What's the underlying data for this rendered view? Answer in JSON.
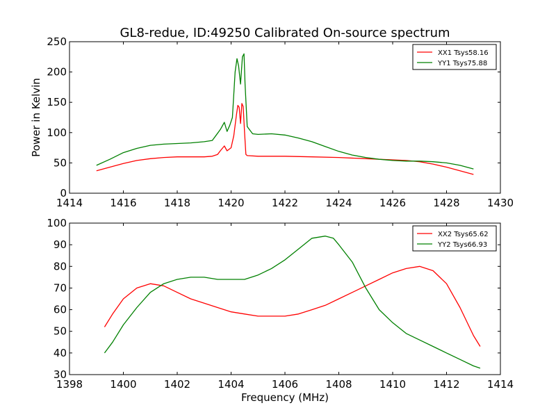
{
  "figure_title": "GL8-redue, ID:49250 Calibrated On-source spectrum",
  "chart_data": [
    {
      "type": "line",
      "title": "GL8-redue, ID:49250 Calibrated On-source spectrum",
      "xlabel": "",
      "ylabel": "Power in Kelvin",
      "xlim": [
        1414,
        1430
      ],
      "ylim": [
        0,
        250
      ],
      "xticks": [
        1414,
        1416,
        1418,
        1420,
        1422,
        1424,
        1426,
        1428,
        1430
      ],
      "yticks": [
        0,
        50,
        100,
        150,
        200,
        250
      ],
      "grid": false,
      "legend_position": "top-right",
      "series": [
        {
          "name": "XX1 Tsys58.16",
          "color": "#ff0000",
          "x": [
            1415,
            1415.5,
            1416,
            1416.5,
            1417,
            1417.5,
            1418,
            1418.5,
            1419,
            1419.3,
            1419.5,
            1419.6,
            1419.75,
            1419.85,
            1420.0,
            1420.1,
            1420.2,
            1420.25,
            1420.3,
            1420.35,
            1420.4,
            1420.45,
            1420.5,
            1420.55,
            1420.6,
            1421,
            1421.5,
            1422,
            1423,
            1424,
            1425,
            1426,
            1426.5,
            1427,
            1427.5,
            1428,
            1428.5,
            1429
          ],
          "y": [
            37,
            43,
            49,
            54,
            57,
            59,
            60,
            60,
            60,
            61,
            64,
            70,
            78,
            70,
            75,
            95,
            130,
            145,
            142,
            115,
            148,
            143,
            100,
            64,
            62,
            61,
            61,
            61,
            60,
            59,
            57,
            55,
            54,
            52,
            48,
            43,
            37,
            31
          ]
        },
        {
          "name": "YY1 Tsys75.88",
          "color": "#008000",
          "x": [
            1415,
            1415.5,
            1416,
            1416.5,
            1417,
            1417.5,
            1418,
            1418.5,
            1419,
            1419.3,
            1419.45,
            1419.6,
            1419.75,
            1419.85,
            1419.95,
            1420.05,
            1420.15,
            1420.22,
            1420.28,
            1420.35,
            1420.42,
            1420.48,
            1420.52,
            1420.6,
            1420.8,
            1421,
            1421.5,
            1422,
            1422.5,
            1423,
            1423.5,
            1424,
            1424.5,
            1425,
            1425.5,
            1426,
            1426.5,
            1427,
            1427.5,
            1428,
            1428.5,
            1429
          ],
          "y": [
            46,
            56,
            67,
            74,
            79,
            81,
            82,
            83,
            85,
            87,
            96,
            105,
            117,
            102,
            112,
            125,
            200,
            222,
            210,
            180,
            225,
            230,
            180,
            110,
            98,
            97,
            98,
            96,
            91,
            85,
            77,
            69,
            63,
            59,
            56,
            54,
            53,
            53,
            52,
            50,
            46,
            40
          ]
        }
      ]
    },
    {
      "type": "line",
      "title": "",
      "xlabel": "Frequency (MHz)",
      "ylabel": "",
      "xlim": [
        1398,
        1414
      ],
      "ylim": [
        30,
        100
      ],
      "xticks": [
        1398,
        1400,
        1402,
        1404,
        1406,
        1408,
        1410,
        1412,
        1414
      ],
      "yticks": [
        30,
        40,
        50,
        60,
        70,
        80,
        90,
        100
      ],
      "grid": false,
      "legend_position": "top-right",
      "series": [
        {
          "name": "XX2 Tsys65.62",
          "color": "#ff0000",
          "x": [
            1399.3,
            1399.6,
            1400,
            1400.5,
            1401,
            1401.5,
            1402,
            1402.5,
            1403,
            1403.5,
            1404,
            1404.5,
            1405,
            1405.5,
            1406,
            1406.5,
            1407,
            1407.5,
            1408,
            1408.5,
            1409,
            1409.5,
            1410,
            1410.5,
            1411,
            1411.5,
            1412,
            1412.5,
            1413,
            1413.25
          ],
          "y": [
            52,
            58,
            65,
            70,
            72,
            71,
            68,
            65,
            63,
            61,
            59,
            58,
            57,
            57,
            57,
            58,
            60,
            62,
            65,
            68,
            71,
            74,
            77,
            79,
            80,
            78,
            72,
            61,
            48,
            43
          ]
        },
        {
          "name": "YY2 Tsys66.93",
          "color": "#008000",
          "x": [
            1399.3,
            1399.6,
            1400,
            1400.5,
            1401,
            1401.5,
            1402,
            1402.5,
            1403,
            1403.5,
            1404,
            1404.5,
            1405,
            1405.5,
            1406,
            1406.5,
            1407,
            1407.5,
            1407.8,
            1408,
            1408.5,
            1409,
            1409.5,
            1410,
            1410.5,
            1411,
            1411.5,
            1412,
            1412.5,
            1413,
            1413.25
          ],
          "y": [
            40,
            45,
            53,
            61,
            68,
            72,
            74,
            75,
            75,
            74,
            74,
            74,
            76,
            79,
            83,
            88,
            93,
            94,
            93,
            90,
            82,
            70,
            60,
            54,
            49,
            46,
            43,
            40,
            37,
            34,
            33
          ]
        }
      ]
    }
  ]
}
